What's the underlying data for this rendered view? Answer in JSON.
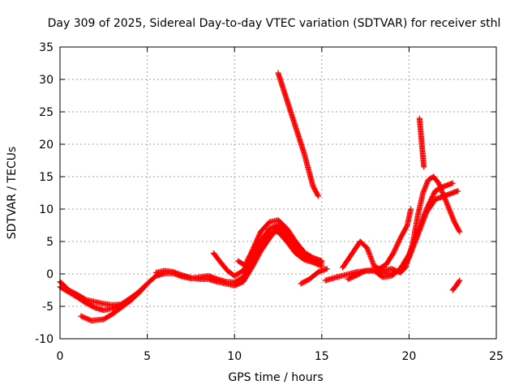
{
  "chart_data": {
    "type": "scatter",
    "title": "Day 309 of 2025, Sidereal Day-to-day VTEC variation (SDTVAR) for receiver sthl",
    "xlabel": "GPS time / hours",
    "ylabel": "SDTVAR / TECUs",
    "xlim": [
      0,
      25
    ],
    "ylim": [
      -10,
      35
    ],
    "xticks": [
      "0",
      "5",
      "10",
      "15",
      "20",
      "25"
    ],
    "yticks": [
      "-10",
      "-5",
      "0",
      "5",
      "10",
      "15",
      "20",
      "25",
      "30",
      "35"
    ],
    "grid": true,
    "marker": "+",
    "color": "#ff0000",
    "series": [
      {
        "name": "trace-1",
        "points": [
          [
            0,
            -1.2
          ],
          [
            0.5,
            -2.5
          ],
          [
            1,
            -3.2
          ],
          [
            1.5,
            -4.0
          ],
          [
            2,
            -4.3
          ],
          [
            2.5,
            -4.6
          ],
          [
            3,
            -4.8
          ],
          [
            3.5,
            -4.7
          ],
          [
            4,
            -3.8
          ],
          [
            4.5,
            -2.8
          ],
          [
            5,
            -1.5
          ],
          [
            5.5,
            -0.3
          ],
          [
            6,
            0.1
          ],
          [
            6.5,
            0.1
          ],
          [
            7,
            -0.4
          ],
          [
            7.5,
            -0.7
          ],
          [
            8,
            -0.5
          ],
          [
            8.5,
            -0.3
          ],
          [
            9,
            -0.8
          ],
          [
            9.5,
            -1.2
          ],
          [
            10,
            -1.3
          ],
          [
            10.5,
            -0.5
          ],
          [
            11,
            1.5
          ],
          [
            11.5,
            4.0
          ],
          [
            12,
            6.5
          ],
          [
            12.5,
            6.5
          ],
          [
            13,
            5.0
          ],
          [
            13.5,
            3.2
          ],
          [
            14,
            2.2
          ],
          [
            14.5,
            1.8
          ],
          [
            15,
            1.2
          ]
        ]
      },
      {
        "name": "trace-2",
        "points": [
          [
            0,
            -2.0
          ],
          [
            0.5,
            -2.8
          ],
          [
            1,
            -3.6
          ],
          [
            1.5,
            -4.5
          ],
          [
            2,
            -5.2
          ],
          [
            2.5,
            -5.6
          ],
          [
            3,
            -5.3
          ],
          [
            3.5,
            -4.8
          ],
          [
            4,
            -4.2
          ]
        ]
      },
      {
        "name": "trace-3",
        "points": [
          [
            1.2,
            -6.5
          ],
          [
            1.8,
            -7.2
          ],
          [
            2.5,
            -7.0
          ],
          [
            3,
            -6.2
          ],
          [
            3.5,
            -5.2
          ],
          [
            4,
            -4.2
          ],
          [
            4.5,
            -3.0
          ],
          [
            5,
            -1.5
          ]
        ]
      },
      {
        "name": "trace-4",
        "points": [
          [
            5.5,
            0.2
          ],
          [
            6,
            0.5
          ],
          [
            6.5,
            0.3
          ],
          [
            7,
            -0.2
          ],
          [
            7.5,
            -0.6
          ],
          [
            8,
            -0.8
          ],
          [
            8.5,
            -0.8
          ],
          [
            9,
            -1.2
          ],
          [
            9.5,
            -1.5
          ],
          [
            10,
            -1.8
          ],
          [
            10.5,
            -1.2
          ],
          [
            11,
            1.0
          ],
          [
            11.5,
            3.5
          ],
          [
            12,
            5.5
          ],
          [
            12.5,
            7.2
          ],
          [
            13,
            6.5
          ],
          [
            13.5,
            4.5
          ],
          [
            14,
            3.0
          ],
          [
            14.5,
            2.0
          ],
          [
            15,
            1.5
          ]
        ]
      },
      {
        "name": "trace-5",
        "points": [
          [
            8.8,
            3.2
          ],
          [
            9.2,
            1.8
          ],
          [
            9.6,
            0.5
          ],
          [
            10,
            -0.3
          ],
          [
            10.5,
            0.5
          ],
          [
            11,
            2.5
          ],
          [
            11.5,
            5.0
          ],
          [
            12,
            7.0
          ],
          [
            12.5,
            7.5
          ],
          [
            13,
            5.8
          ],
          [
            13.5,
            3.8
          ],
          [
            14,
            2.5
          ],
          [
            14.5,
            2.0
          ],
          [
            15,
            1.8
          ]
        ]
      },
      {
        "name": "trace-6",
        "points": [
          [
            10.2,
            2.0
          ],
          [
            10.6,
            1.3
          ],
          [
            11,
            3.5
          ],
          [
            11.5,
            6.5
          ],
          [
            12,
            8.0
          ],
          [
            12.5,
            8.3
          ],
          [
            13,
            7.0
          ],
          [
            13.5,
            5.0
          ],
          [
            14,
            3.3
          ],
          [
            14.5,
            2.5
          ],
          [
            15,
            2.0
          ]
        ]
      },
      {
        "name": "trace-7",
        "points": [
          [
            12.5,
            31.0
          ],
          [
            12.8,
            28.5
          ],
          [
            13.1,
            26.0
          ],
          [
            13.4,
            23.5
          ],
          [
            13.7,
            21.0
          ],
          [
            14.0,
            18.5
          ],
          [
            14.3,
            15.5
          ],
          [
            14.5,
            13.5
          ],
          [
            14.8,
            12.0
          ]
        ]
      },
      {
        "name": "trace-8",
        "points": [
          [
            13.8,
            -1.5
          ],
          [
            14.3,
            -0.8
          ],
          [
            14.8,
            0.3
          ],
          [
            15.3,
            0.8
          ]
        ]
      },
      {
        "name": "trace-9",
        "points": [
          [
            13.8,
            4.0
          ],
          [
            14.0,
            3.2
          ],
          [
            14.3,
            2.3
          ],
          [
            14.6,
            1.8
          ]
        ]
      },
      {
        "name": "trace-10",
        "points": [
          [
            15.2,
            -1.0
          ],
          [
            16,
            -0.4
          ],
          [
            17,
            0.3
          ],
          [
            18,
            0.6
          ],
          [
            18.5,
            0.2
          ],
          [
            19,
            0.0
          ],
          [
            19.5,
            0.6
          ],
          [
            20,
            2.5
          ],
          [
            20.5,
            6.0
          ],
          [
            21,
            9.5
          ],
          [
            21.5,
            11.5
          ],
          [
            22,
            12.0
          ],
          [
            22.5,
            12.5
          ],
          [
            22.8,
            12.8
          ]
        ]
      },
      {
        "name": "trace-11",
        "points": [
          [
            16.2,
            1.0
          ],
          [
            16.7,
            3.0
          ],
          [
            17.2,
            5.0
          ],
          [
            17.6,
            4.0
          ],
          [
            18,
            1.2
          ],
          [
            18.5,
            0.5
          ],
          [
            19,
            0.8
          ],
          [
            19.5,
            0.2
          ],
          [
            19.8,
            1.0
          ],
          [
            20.2,
            4.5
          ],
          [
            20.5,
            9.0
          ],
          [
            20.8,
            12.5
          ],
          [
            21.1,
            14.5
          ],
          [
            21.4,
            15.0
          ],
          [
            21.7,
            14.0
          ],
          [
            22,
            12.0
          ],
          [
            22.3,
            10.0
          ],
          [
            22.6,
            8.0
          ],
          [
            22.9,
            6.5
          ]
        ]
      },
      {
        "name": "trace-12",
        "points": [
          [
            16.5,
            -0.8
          ],
          [
            17,
            -0.2
          ],
          [
            17.5,
            0.5
          ],
          [
            18,
            0.5
          ],
          [
            18.5,
            -0.5
          ],
          [
            19,
            -0.3
          ],
          [
            19.5,
            0.8
          ],
          [
            20,
            3.0
          ],
          [
            20.5,
            6.5
          ],
          [
            21,
            10.0
          ],
          [
            21.5,
            12.8
          ],
          [
            22,
            13.5
          ],
          [
            22.5,
            14.0
          ]
        ]
      },
      {
        "name": "trace-13",
        "points": [
          [
            18.3,
            0.8
          ],
          [
            18.7,
            1.5
          ],
          [
            19.1,
            3.2
          ],
          [
            19.5,
            5.5
          ],
          [
            19.9,
            7.5
          ],
          [
            20.1,
            10.0
          ]
        ]
      },
      {
        "name": "trace-14",
        "points": [
          [
            20.6,
            24.0
          ],
          [
            20.65,
            22.5
          ],
          [
            20.7,
            21.0
          ],
          [
            20.75,
            19.5
          ],
          [
            20.8,
            18.0
          ],
          [
            20.85,
            16.5
          ]
        ]
      },
      {
        "name": "trace-15",
        "points": [
          [
            22.5,
            -2.5
          ],
          [
            22.7,
            -1.8
          ],
          [
            22.9,
            -1.0
          ]
        ]
      }
    ]
  }
}
